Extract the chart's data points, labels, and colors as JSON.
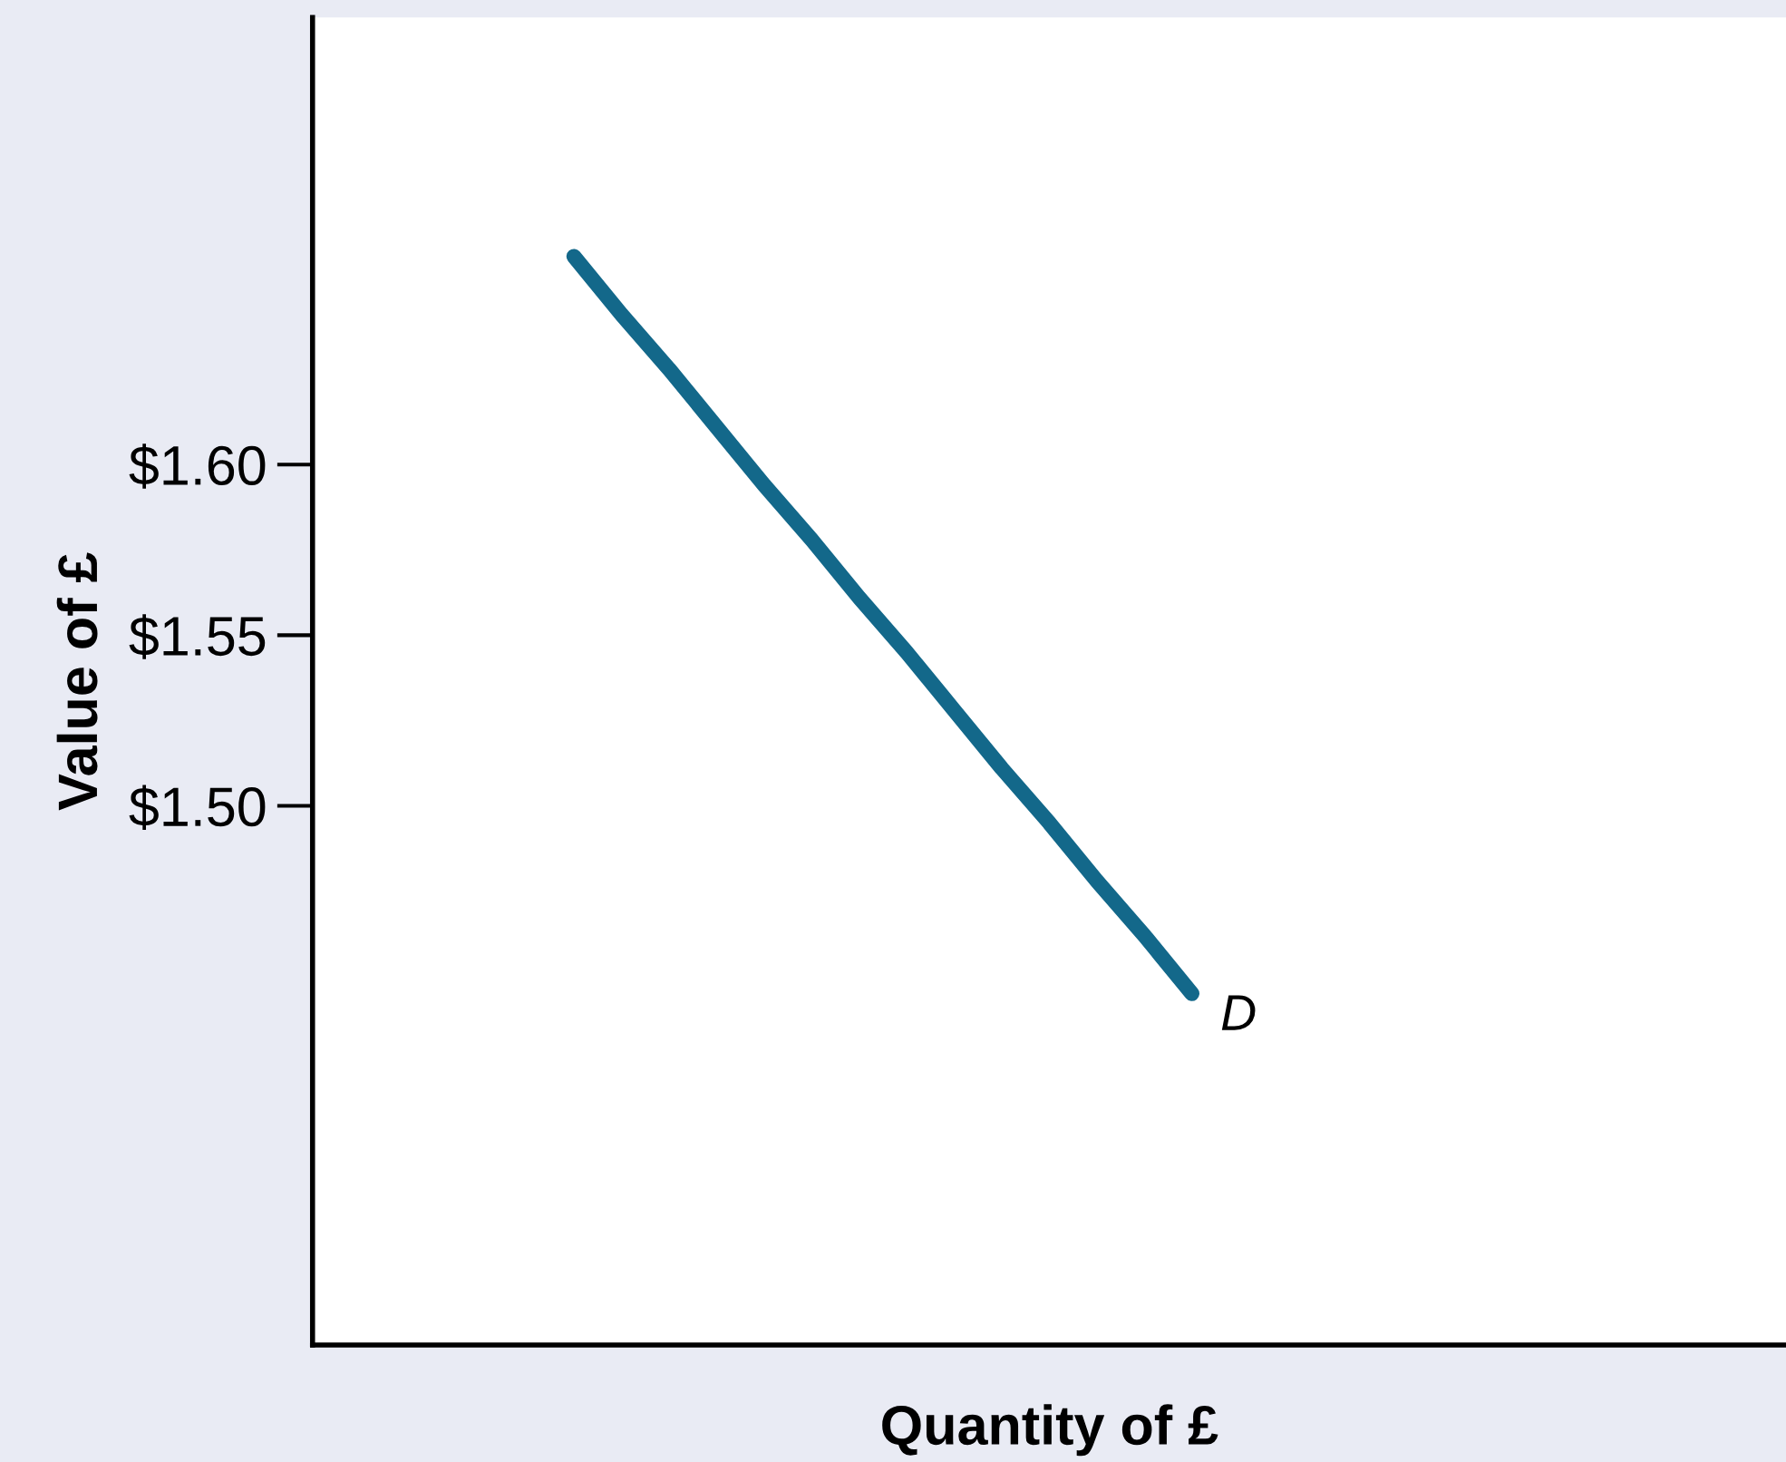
{
  "chart_data": {
    "type": "line",
    "xlabel": "Quantity of £",
    "ylabel": "Value of £",
    "categories": [
      null,
      null,
      null,
      null,
      null,
      null,
      null,
      null,
      null,
      null,
      null,
      null,
      null,
      null,
      null,
      null,
      null,
      null,
      null,
      null,
      null,
      null,
      null,
      null,
      null,
      null,
      null,
      null,
      null,
      null,
      null
    ],
    "series": [
      {
        "name": "D",
        "color": "#13688a",
        "values": [
          null,
          null,
          null,
          null,
          null,
          1.661,
          1.644,
          1.628,
          1.611,
          1.594,
          1.578,
          1.561,
          1.545,
          1.528,
          1.511,
          1.495,
          1.478,
          1.462,
          1.445,
          null,
          null,
          null,
          null,
          null,
          null,
          null,
          null,
          null,
          null,
          null,
          null
        ]
      }
    ],
    "ylim": [
      1.342,
      1.731
    ],
    "yticks": [
      {
        "value": 1.5,
        "label": "$1.50"
      },
      {
        "value": 1.55,
        "label": "$1.55"
      },
      {
        "value": 1.6,
        "label": "$1.60"
      }
    ],
    "grid": false,
    "legend": false,
    "marker": "none",
    "line_style": "solid"
  }
}
